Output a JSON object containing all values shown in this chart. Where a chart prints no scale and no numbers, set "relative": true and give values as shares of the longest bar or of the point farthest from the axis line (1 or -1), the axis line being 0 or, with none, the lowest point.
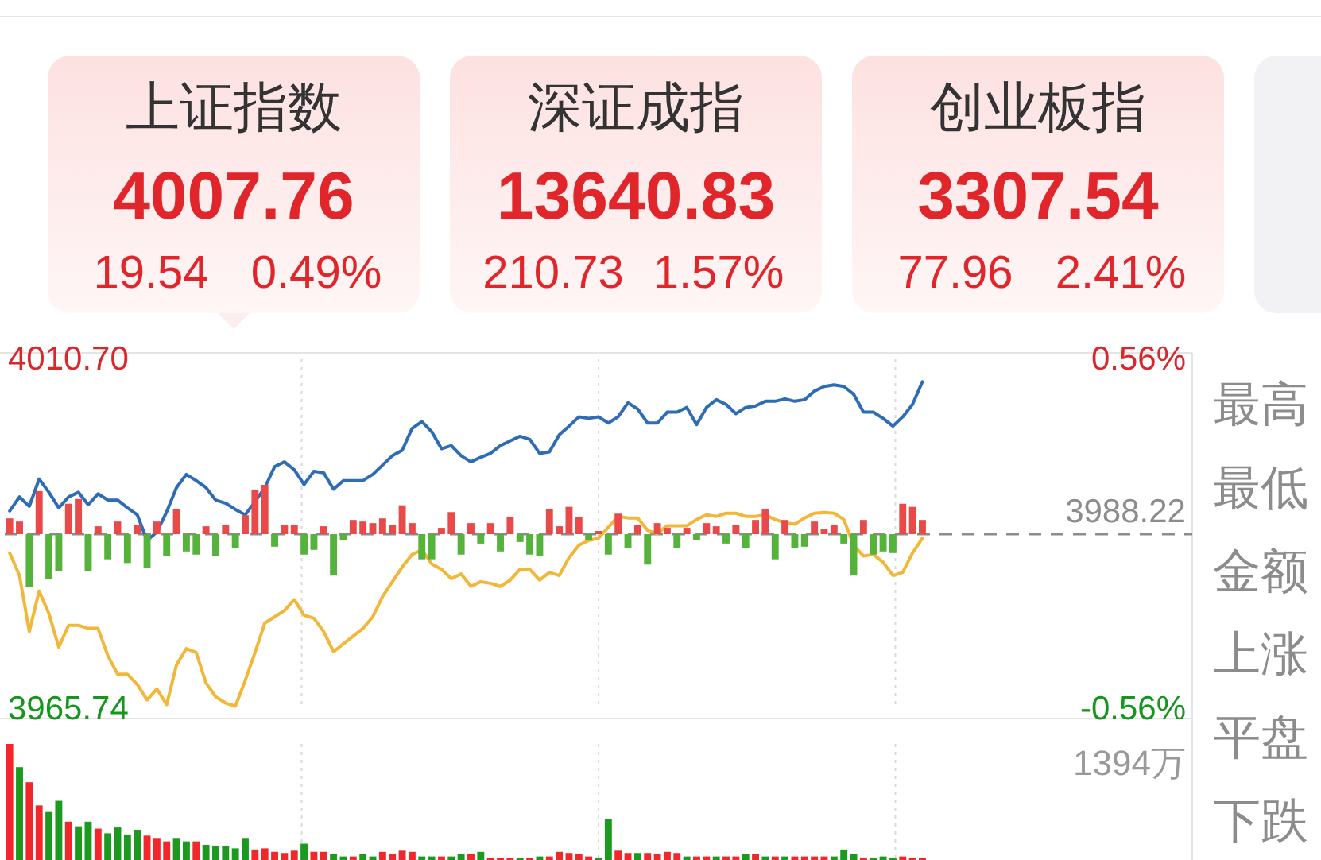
{
  "chart_data": [
    {
      "type": "other",
      "categories": [
        "上证指数",
        "深证成指",
        "创业板指"
      ],
      "series": [
        {
          "color": "#e0262b",
          "values": [
            4007.76,
            13640.83,
            3307.54
          ]
        },
        {
          "color": "#e0262b",
          "values": [
            19.54,
            210.73,
            77.96
          ]
        },
        {
          "color": "#e0262b",
          "values": [
            0.49,
            1.57,
            2.41
          ],
          "value_labels": [
            "0.49%",
            "1.57%",
            "2.41%"
          ]
        }
      ],
      "data_labels": true
    },
    {
      "type": "line",
      "categories": [
        null,
        null,
        null,
        null,
        null,
        null,
        null,
        null,
        null,
        null,
        null,
        null,
        null,
        null,
        null,
        null,
        null,
        null,
        null,
        null,
        null,
        null,
        null,
        null,
        null,
        null,
        null,
        null,
        null,
        null,
        null,
        null,
        null,
        null,
        null,
        null,
        null,
        null,
        null,
        null,
        null,
        null,
        null,
        null,
        null,
        null,
        null,
        null,
        null,
        null,
        null,
        null,
        null,
        null,
        null,
        null,
        null,
        null,
        null,
        null,
        null,
        null,
        null,
        null,
        null,
        null,
        null,
        null,
        null,
        null,
        null,
        null,
        null,
        null,
        null,
        null,
        null,
        null,
        null,
        null,
        null,
        null,
        null,
        null,
        null,
        null,
        null,
        null,
        null,
        null,
        null,
        null,
        null,
        null,
        null,
        null,
        null,
        null,
        null,
        null,
        null,
        null,
        null,
        null,
        null,
        null,
        null,
        null,
        null,
        null,
        null,
        null,
        null,
        null,
        null,
        null,
        null,
        null,
        null,
        null,
        null
      ],
      "series": [
        {
          "color": "#2e6cb5",
          "values": [
            3991.2,
            3993.0,
            3991.8,
            3995.3,
            3993.6,
            3991.6,
            3993.0,
            3993.6,
            3992.0,
            3993.4,
            3992.6,
            3992.6,
            3991.6,
            3990.7,
            3987.4,
            3988.5,
            3991.1,
            3994.2,
            3995.9,
            3995.1,
            3994.2,
            3992.6,
            3992.2,
            3991.4,
            3990.7,
            3992.4,
            3994.2,
            3996.9,
            3997.5,
            3996.5,
            3994.6,
            3996.3,
            3996.1,
            3994.0,
            3995.1,
            3995.1,
            3995.1,
            3995.9,
            3997.1,
            3998.3,
            3999.0,
            4001.8,
            4002.7,
            4001.4,
            3999.2,
            3999.6,
            3998.3,
            3997.5,
            3998.1,
            3998.6,
            3999.6,
            4000.2,
            4000.8,
            4000.4,
            3998.6,
            3998.8,
            4001.0,
            4002.1,
            4003.3,
            4003.1,
            4003.3,
            4002.5,
            4003.3,
            4005.1,
            4004.3,
            4002.5,
            4002.5,
            4003.9,
            4003.9,
            4004.5,
            4002.3,
            4004.5,
            4005.5,
            4004.9,
            4003.7,
            4004.5,
            4004.7,
            4005.3,
            4005.3,
            4005.6,
            4005.3,
            4005.5,
            4006.6,
            4007.2,
            4007.4,
            4007.2,
            4006.2,
            4003.9,
            4003.9,
            4003.1,
            4002.1,
            4003.3,
            4004.9,
            4007.8,
            null,
            null,
            null,
            null,
            null,
            null,
            null,
            null,
            null,
            null,
            null,
            null,
            null,
            null,
            null,
            null,
            null,
            null,
            null,
            null,
            null,
            null,
            null,
            null,
            null,
            null,
            null
          ]
        },
        {
          "color": "#f2b739",
          "values": [
            3985.8,
            3982.9,
            3975.7,
            3980.9,
            3978.0,
            3973.7,
            3976.5,
            3976.5,
            3976.1,
            3976.1,
            3972.6,
            3970.2,
            3970.2,
            3968.9,
            3966.9,
            3968.3,
            3966.3,
            3971.4,
            3973.5,
            3973.0,
            3969.1,
            3967.3,
            3966.5,
            3966.1,
            3969.4,
            3973.0,
            3976.8,
            3977.6,
            3978.4,
            3979.8,
            3977.8,
            3977.4,
            3975.7,
            3973.1,
            3974.1,
            3975.1,
            3976.1,
            3977.6,
            3980.2,
            3982.1,
            3984.0,
            3985.6,
            3986.2,
            3984.4,
            3983.7,
            3982.5,
            3983.1,
            3981.5,
            3982.1,
            3981.9,
            3981.5,
            3982.3,
            3983.7,
            3983.7,
            3982.3,
            3983.3,
            3982.9,
            3985.2,
            3986.8,
            3987.4,
            3987.7,
            3989.1,
            3990.5,
            3990.3,
            3990.3,
            3988.7,
            3988.3,
            3989.3,
            3989.3,
            3989.3,
            3990.1,
            3990.7,
            3990.5,
            3990.9,
            3990.9,
            3990.5,
            3990.5,
            3990.7,
            3990.1,
            3989.7,
            3989.5,
            3990.3,
            3990.9,
            3991.0,
            3990.9,
            3990.1,
            3986.8,
            3985.4,
            3985.6,
            3984.6,
            3982.9,
            3983.3,
            3985.8,
            3987.7,
            null,
            null,
            null,
            null,
            null,
            null,
            null,
            null,
            null,
            null,
            null,
            null,
            null,
            null,
            null,
            null,
            null,
            null,
            null,
            null,
            null,
            null,
            null,
            null,
            null,
            null,
            null
          ]
        }
      ],
      "ylim": [
        3965.74,
        4010.7
      ],
      "yticks": [
        {
          "value": 4010.7,
          "label": "4010.70"
        },
        {
          "value": 3965.74,
          "label": "3965.74"
        }
      ],
      "y2lim": [
        -0.56,
        0.56
      ],
      "y2ticks": [
        {
          "value": 0.56,
          "label": "0.56%"
        },
        {
          "value": -0.56,
          "label": "-0.56%"
        }
      ],
      "ref_lines": [
        {
          "axis": "y",
          "value": 3988.22,
          "label": "3988.22",
          "line_style": "dashed",
          "color": "#8c8c8c"
        }
      ],
      "grid": "x"
    },
    {
      "type": "bar",
      "relative": true,
      "categories": [
        null,
        null,
        null,
        null,
        null,
        null,
        null,
        null,
        null,
        null,
        null,
        null,
        null,
        null,
        null,
        null,
        null,
        null,
        null,
        null,
        null,
        null,
        null,
        null,
        null,
        null,
        null,
        null,
        null,
        null,
        null,
        null,
        null,
        null,
        null,
        null,
        null,
        null,
        null,
        null,
        null,
        null,
        null,
        null,
        null,
        null,
        null,
        null,
        null,
        null,
        null,
        null,
        null,
        null,
        null,
        null,
        null,
        null,
        null,
        null,
        null,
        null,
        null,
        null,
        null,
        null,
        null,
        null,
        null,
        null,
        null,
        null,
        null,
        null,
        null,
        null,
        null,
        null,
        null,
        null,
        null,
        null,
        null,
        null,
        null,
        null,
        null,
        null,
        null,
        null,
        null,
        null,
        null,
        null,
        null,
        null,
        null,
        null,
        null,
        null,
        null,
        null,
        null,
        null,
        null,
        null,
        null,
        null,
        null,
        null,
        null,
        null,
        null,
        null,
        null,
        null,
        null,
        null,
        null,
        null,
        null
      ],
      "values": [
        0.3,
        0.24,
        -1,
        0.82,
        -0.85,
        -0.7,
        0.58,
        0.67,
        -0.7,
        0.15,
        -0.48,
        0.24,
        -0.55,
        0.18,
        -0.64,
        0.24,
        -0.42,
        0.48,
        -0.33,
        -0.39,
        0.15,
        -0.42,
        0.18,
        -0.27,
        0.36,
        0.85,
        0.94,
        -0.24,
        0.18,
        0.18,
        -0.39,
        -0.3,
        0.15,
        -0.79,
        -0.12,
        0.27,
        0.24,
        0.21,
        0.3,
        0.18,
        0.55,
        0.21,
        -0.48,
        -0.48,
        0.12,
        0.42,
        -0.39,
        0.21,
        -0.18,
        0.21,
        -0.33,
        0.33,
        -0.15,
        -0.39,
        -0.42,
        0.48,
        0.15,
        0.52,
        0.33,
        -0.12,
        0.06,
        -0.39,
        0.39,
        -0.27,
        0.18,
        -0.58,
        0.21,
        0.12,
        -0.27,
        0.12,
        -0.12,
        0.21,
        0.15,
        -0.18,
        0.18,
        -0.27,
        0.27,
        0.48,
        -0.48,
        0.27,
        -0.27,
        -0.24,
        0.24,
        0.09,
        0.18,
        -0.18,
        -0.79,
        0.27,
        -0.39,
        -0.33,
        -0.36,
        0.58,
        0.52,
        0.27,
        null,
        null,
        null,
        null,
        null,
        null,
        null,
        null,
        null,
        null,
        null,
        null,
        null,
        null,
        null,
        null,
        null,
        null,
        null,
        null,
        null,
        null,
        null,
        null,
        null,
        null,
        null
      ],
      "colors": [
        "#e84a4a",
        "#e84a4a",
        "#55b33b",
        "#e84a4a",
        "#55b33b",
        "#55b33b",
        "#e84a4a",
        "#e84a4a",
        "#55b33b",
        "#e84a4a",
        "#55b33b",
        "#e84a4a",
        "#55b33b",
        "#e84a4a",
        "#55b33b",
        "#e84a4a",
        "#55b33b",
        "#e84a4a",
        "#55b33b",
        "#55b33b",
        "#e84a4a",
        "#55b33b",
        "#e84a4a",
        "#55b33b",
        "#e84a4a",
        "#e84a4a",
        "#e84a4a",
        "#55b33b",
        "#e84a4a",
        "#e84a4a",
        "#55b33b",
        "#55b33b",
        "#e84a4a",
        "#55b33b",
        "#55b33b",
        "#e84a4a",
        "#e84a4a",
        "#e84a4a",
        "#e84a4a",
        "#e84a4a",
        "#e84a4a",
        "#e84a4a",
        "#55b33b",
        "#55b33b",
        "#e84a4a",
        "#e84a4a",
        "#55b33b",
        "#e84a4a",
        "#55b33b",
        "#e84a4a",
        "#55b33b",
        "#e84a4a",
        "#55b33b",
        "#55b33b",
        "#55b33b",
        "#e84a4a",
        "#e84a4a",
        "#e84a4a",
        "#e84a4a",
        "#55b33b",
        "#e84a4a",
        "#55b33b",
        "#e84a4a",
        "#55b33b",
        "#e84a4a",
        "#55b33b",
        "#e84a4a",
        "#e84a4a",
        "#55b33b",
        "#e84a4a",
        "#55b33b",
        "#e84a4a",
        "#e84a4a",
        "#55b33b",
        "#e84a4a",
        "#55b33b",
        "#e84a4a",
        "#e84a4a",
        "#55b33b",
        "#e84a4a",
        "#55b33b",
        "#55b33b",
        "#e84a4a",
        "#e84a4a",
        "#e84a4a",
        "#55b33b",
        "#55b33b",
        "#e84a4a",
        "#55b33b",
        "#55b33b",
        "#55b33b",
        "#e84a4a",
        "#e84a4a",
        "#e84a4a",
        null,
        null,
        null,
        null,
        null,
        null,
        null,
        null,
        null,
        null,
        null,
        null,
        null,
        null,
        null,
        null,
        null,
        null,
        null,
        null,
        null,
        null,
        null,
        null,
        null,
        null,
        null
      ]
    },
    {
      "type": "bar",
      "relative": true,
      "categories": [
        null,
        null,
        null,
        null,
        null,
        null,
        null,
        null,
        null,
        null,
        null,
        null,
        null,
        null,
        null,
        null,
        null,
        null,
        null,
        null,
        null,
        null,
        null,
        null,
        null,
        null,
        null,
        null,
        null,
        null,
        null,
        null,
        null,
        null,
        null,
        null,
        null,
        null,
        null,
        null,
        null,
        null,
        null,
        null,
        null,
        null,
        null,
        null,
        null,
        null,
        null,
        null,
        null,
        null,
        null,
        null,
        null,
        null,
        null,
        null,
        null,
        null,
        null,
        null,
        null,
        null,
        null,
        null,
        null,
        null,
        null,
        null,
        null,
        null,
        null,
        null,
        null,
        null,
        null,
        null,
        null,
        null,
        null,
        null,
        null,
        null,
        null,
        null,
        null,
        null,
        null,
        null,
        null,
        null,
        null,
        null,
        null,
        null,
        null,
        null,
        null,
        null,
        null,
        null,
        null,
        null,
        null,
        null,
        null,
        null,
        null,
        null,
        null,
        null,
        null,
        null,
        null,
        null,
        null,
        null,
        null
      ],
      "values": [
        1,
        0.8,
        0.67,
        0.47,
        0.42,
        0.51,
        0.33,
        0.29,
        0.33,
        0.27,
        0.23,
        0.28,
        0.22,
        0.26,
        0.21,
        0.19,
        0.16,
        0.19,
        0.16,
        0.16,
        0.13,
        0.12,
        0.12,
        0.1,
        0.19,
        0.09,
        0.1,
        0.07,
        0.06,
        0.08,
        0.14,
        0.07,
        0.07,
        0.05,
        0.03,
        0.03,
        0.05,
        0.03,
        0.07,
        0.05,
        0.08,
        0.07,
        0.03,
        0.03,
        0.03,
        0.03,
        0.05,
        0.05,
        0.07,
        0.02,
        0.02,
        0.02,
        0.02,
        0.02,
        0.03,
        0.03,
        0.07,
        0.06,
        0.05,
        0.03,
        0.02,
        0.35,
        0.08,
        0.06,
        0.06,
        0.06,
        0.05,
        0.07,
        0.06,
        0.03,
        0.03,
        0.03,
        0.03,
        0.03,
        0.03,
        0.05,
        0.05,
        0.03,
        0.03,
        0.03,
        0.03,
        0.03,
        0.03,
        0.03,
        0.03,
        0.09,
        0.05,
        0.02,
        0.02,
        0.03,
        0.02,
        0.03,
        0.02,
        0.02,
        null,
        null,
        null,
        null,
        null,
        null,
        null,
        null,
        null,
        null,
        null,
        null,
        null,
        null,
        null,
        null,
        null,
        null,
        null,
        null,
        null,
        null,
        null,
        null,
        null,
        null,
        null
      ],
      "colors": [
        "#f0282c",
        "#1c9a20",
        "#f0282c",
        "#f0282c",
        "#1c9a20",
        "#1c9a20",
        "#f0282c",
        "#1c9a20",
        "#1c9a20",
        "#f0282c",
        "#1c9a20",
        "#1c9a20",
        "#1c9a20",
        "#1c9a20",
        "#f0282c",
        "#f0282c",
        "#f0282c",
        "#1c9a20",
        "#1c9a20",
        "#f0282c",
        "#1c9a20",
        "#1c9a20",
        "#1c9a20",
        "#1c9a20",
        "#1c9a20",
        "#f0282c",
        "#f0282c",
        "#f0282c",
        "#f0282c",
        "#f0282c",
        "#1c9a20",
        "#f0282c",
        "#f0282c",
        "#1c9a20",
        "#1c9a20",
        "#f0282c",
        "#1c9a20",
        "#1c9a20",
        "#f0282c",
        "#f0282c",
        "#f0282c",
        "#f0282c",
        "#1c9a20",
        "#1c9a20",
        "#f0282c",
        "#1c9a20",
        "#1c9a20",
        "#f0282c",
        "#1c9a20",
        "#f0282c",
        "#f0282c",
        "#f0282c",
        "#1c9a20",
        "#f0282c",
        "#1c9a20",
        "#f0282c",
        "#f0282c",
        "#f0282c",
        "#f0282c",
        "#f0282c",
        "#1c9a20",
        "#1c9a20",
        "#f0282c",
        "#f0282c",
        "#1c9a20",
        "#f0282c",
        "#f0282c",
        "#f0282c",
        "#f0282c",
        "#1c9a20",
        "#f0282c",
        "#f0282c",
        "#1c9a20",
        "#f0282c",
        "#f0282c",
        "#1c9a20",
        "#f0282c",
        "#1c9a20",
        "#f0282c",
        "#1c9a20",
        "#f0282c",
        "#f0282c",
        "#f0282c",
        "#f0282c",
        "#1c9a20",
        "#1c9a20",
        "#1c9a20",
        "#f0282c",
        "#1c9a20",
        "#1c9a20",
        "#1c9a20",
        "#f0282c",
        "#f0282c",
        "#f0282c",
        null,
        null,
        null,
        null,
        null,
        null,
        null,
        null,
        null,
        null,
        null,
        null,
        null,
        null,
        null,
        null,
        null,
        null,
        null,
        null,
        null,
        null,
        null,
        null,
        null,
        null,
        null
      ],
      "annotations": [
        "1394万"
      ],
      "grid": "x"
    },
    {
      "type": "other",
      "annotations": [
        "最高",
        "最低",
        "金额",
        "上涨",
        "平盘",
        "下跌"
      ]
    }
  ]
}
